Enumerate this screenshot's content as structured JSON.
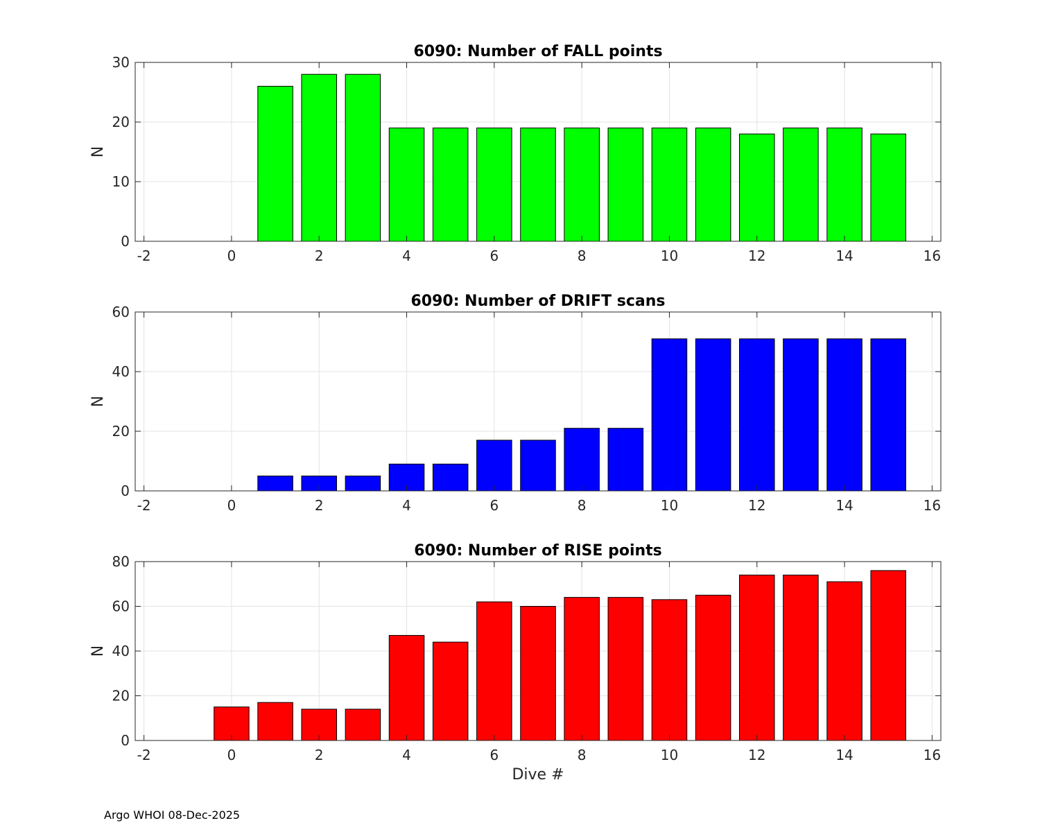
{
  "footer_text": "Argo WHOI 08-Dec-2025",
  "chart_data": [
    {
      "type": "bar",
      "title": "6090: Number of FALL points",
      "xlabel": "",
      "ylabel": "N",
      "color": "#00ff00",
      "xlim": [
        -2.2,
        16.2
      ],
      "ylim": [
        0,
        30
      ],
      "xticks": [
        -2,
        0,
        2,
        4,
        6,
        8,
        10,
        12,
        14,
        16
      ],
      "yticks": [
        0,
        10,
        20,
        30
      ],
      "grid": true,
      "x": [
        1,
        2,
        3,
        4,
        5,
        6,
        7,
        8,
        9,
        10,
        11,
        12,
        13,
        14,
        15
      ],
      "values": [
        26,
        28,
        28,
        19,
        19,
        19,
        19,
        19,
        19,
        19,
        19,
        18,
        19,
        19,
        18
      ]
    },
    {
      "type": "bar",
      "title": "6090: Number of DRIFT scans",
      "xlabel": "",
      "ylabel": "N",
      "color": "#0000ff",
      "xlim": [
        -2.2,
        16.2
      ],
      "ylim": [
        0,
        60
      ],
      "xticks": [
        -2,
        0,
        2,
        4,
        6,
        8,
        10,
        12,
        14,
        16
      ],
      "yticks": [
        0,
        20,
        40,
        60
      ],
      "grid": true,
      "x": [
        1,
        2,
        3,
        4,
        5,
        6,
        7,
        8,
        9,
        10,
        11,
        12,
        13,
        14,
        15
      ],
      "values": [
        5,
        5,
        5,
        9,
        9,
        17,
        17,
        21,
        21,
        51,
        51,
        51,
        51,
        51,
        51
      ]
    },
    {
      "type": "bar",
      "title": "6090: Number of RISE points",
      "xlabel": "Dive #",
      "ylabel": "N",
      "color": "#ff0000",
      "xlim": [
        -2.2,
        16.2
      ],
      "ylim": [
        0,
        80
      ],
      "xticks": [
        -2,
        0,
        2,
        4,
        6,
        8,
        10,
        12,
        14,
        16
      ],
      "yticks": [
        0,
        20,
        40,
        60,
        80
      ],
      "grid": true,
      "x": [
        0,
        1,
        2,
        3,
        4,
        5,
        6,
        7,
        8,
        9,
        10,
        11,
        12,
        13,
        14,
        15
      ],
      "values": [
        15,
        17,
        14,
        14,
        47,
        44,
        62,
        60,
        64,
        64,
        63,
        65,
        74,
        74,
        71,
        76
      ]
    }
  ]
}
